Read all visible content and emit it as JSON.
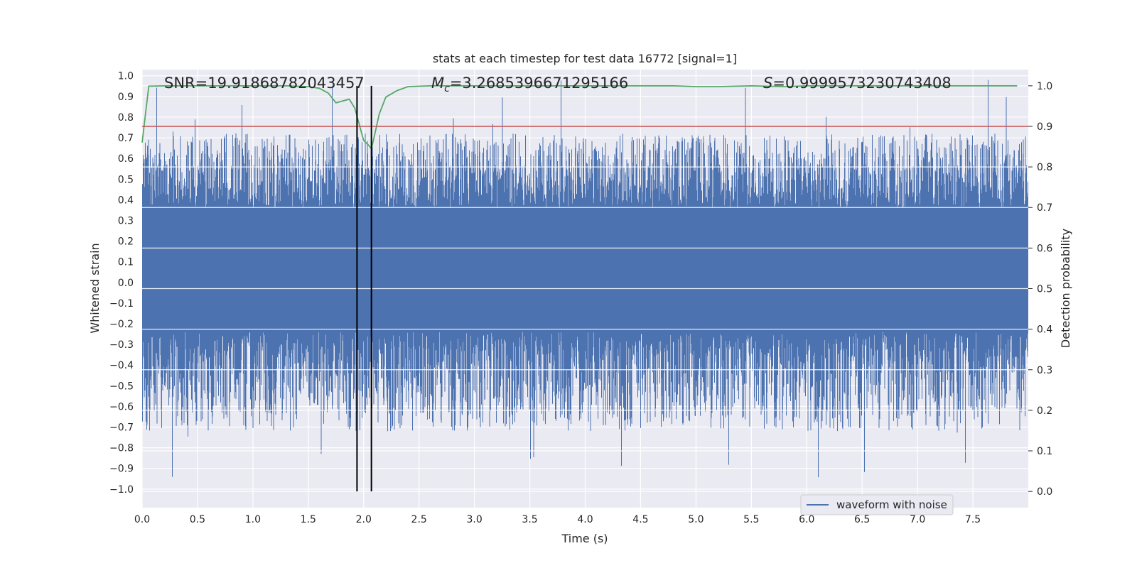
{
  "chart_data": {
    "type": "line",
    "title": "stats at each timestep for test data 16772 [signal=1]",
    "xlabel": "Time (s)",
    "ylabel_left": "Whitened strain",
    "ylabel_right": "Detection probability",
    "xlim": [
      0.0,
      8.0
    ],
    "ylim_left": [
      -1.09,
      1.03
    ],
    "ylim_right": [
      -0.04,
      1.04
    ],
    "grid": true,
    "legend": {
      "entries": [
        "waveform with noise"
      ],
      "placement": "lower-right"
    },
    "x_ticks": [
      "0.0",
      "0.5",
      "1.0",
      "1.5",
      "2.0",
      "2.5",
      "3.0",
      "3.5",
      "4.0",
      "4.5",
      "5.0",
      "5.5",
      "6.0",
      "6.5",
      "7.0",
      "7.5"
    ],
    "x_tick_values": [
      0.0,
      0.5,
      1.0,
      1.5,
      2.0,
      2.5,
      3.0,
      3.5,
      4.0,
      4.5,
      5.0,
      5.5,
      6.0,
      6.5,
      7.0,
      7.5
    ],
    "y_left_ticks": [
      "1.0",
      "0.9",
      "0.8",
      "0.7",
      "0.6",
      "0.5",
      "0.4",
      "0.3",
      "0.2",
      "0.1",
      "0.0",
      "−0.1",
      "−0.2",
      "−0.3",
      "−0.4",
      "−0.5",
      "−0.6",
      "−0.7",
      "−0.8",
      "−0.9",
      "−1.0"
    ],
    "y_left_tick_values": [
      1.0,
      0.9,
      0.8,
      0.7,
      0.6,
      0.5,
      0.4,
      0.3,
      0.2,
      0.1,
      0.0,
      -0.1,
      -0.2,
      -0.3,
      -0.4,
      -0.5,
      -0.6,
      -0.7,
      -0.8,
      -0.9,
      -1.0
    ],
    "y_right_ticks": [
      "1.0",
      "0.9",
      "0.8",
      "0.7",
      "0.6",
      "0.5",
      "0.4",
      "0.3",
      "0.2",
      "0.1",
      "0.0"
    ],
    "y_right_tick_values": [
      1.0,
      0.9,
      0.8,
      0.7,
      0.6,
      0.5,
      0.4,
      0.3,
      0.2,
      0.1,
      0.0
    ],
    "annotations": {
      "snr": "SNR=19.91868782043457",
      "mc_symbol": "M",
      "mc_subscript": "c",
      "mc_value": "=3.2685396671295166",
      "s_symbol": "S",
      "s_value": "=0.9999573230743408"
    },
    "threshold": {
      "value": 0.9,
      "axis": "right",
      "color": "#c44e52"
    },
    "event_window": {
      "start": 1.94,
      "end": 2.07,
      "color": "#000000"
    },
    "series": [
      {
        "name": "waveform with noise",
        "axis": "left",
        "color": "#4c72b0",
        "style": "dense noise trace",
        "core_band": [
          -0.24,
          0.36
        ],
        "typical_max": 0.72,
        "typical_min": -0.72,
        "peak_max": 0.99,
        "peak_min": -0.99
      },
      {
        "axis": "right",
        "color": "#55a868",
        "x": [
          0.0,
          0.03,
          0.06,
          0.2,
          0.5,
          0.8,
          1.0,
          1.3,
          1.5,
          1.6,
          1.68,
          1.75,
          1.8,
          1.87,
          1.92,
          1.96,
          2.0,
          2.04,
          2.07,
          2.1,
          2.14,
          2.2,
          2.3,
          2.4,
          2.6,
          3.0,
          3.5,
          4.0,
          4.5,
          4.8,
          5.0,
          5.2,
          5.5,
          5.8,
          6.0,
          6.5,
          7.0,
          7.5,
          7.9
        ],
        "y": [
          0.86,
          0.93,
          0.999,
          1.0,
          1.0,
          1.0,
          1.0,
          1.0,
          0.998,
          0.994,
          0.982,
          0.958,
          0.962,
          0.967,
          0.945,
          0.905,
          0.865,
          0.855,
          0.845,
          0.88,
          0.93,
          0.972,
          0.988,
          0.998,
          1.0,
          1.0,
          1.0,
          1.0,
          1.0,
          1.0,
          0.998,
          0.998,
          1.0,
          0.998,
          1.0,
          1.0,
          1.0,
          1.0,
          1.0
        ]
      }
    ]
  }
}
